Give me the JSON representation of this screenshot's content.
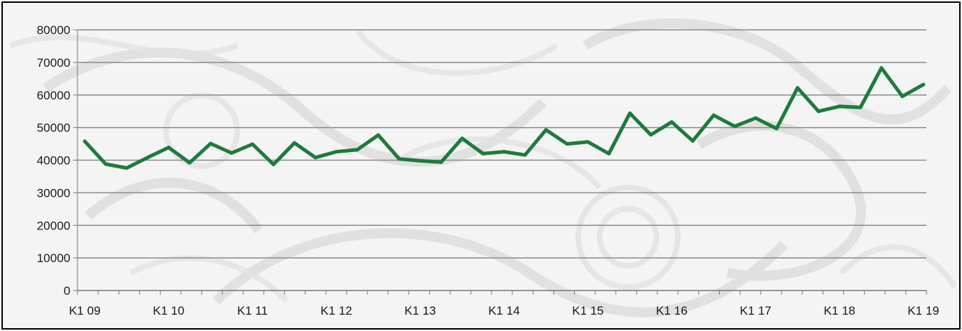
{
  "chart_data": {
    "type": "line",
    "title": "",
    "xlabel": "",
    "ylabel": "",
    "ylim": [
      0,
      80000
    ],
    "yticks": [
      0,
      10000,
      20000,
      30000,
      40000,
      50000,
      60000,
      70000,
      80000
    ],
    "ytick_labels": [
      "0",
      "10000",
      "20000",
      "30000",
      "40000",
      "50000",
      "60000",
      "70000",
      "80000"
    ],
    "xtick_labels": [
      "K1 09",
      "K1 10",
      "K1 11",
      "K1 12",
      "K1 13",
      "K1 14",
      "K1 15",
      "K1 16",
      "K1 17",
      "K1 18",
      "K1 19"
    ],
    "grid": true,
    "legend": "none",
    "line_color": "#1e7b3a",
    "series": [
      {
        "values": [
          45800,
          38800,
          37600,
          40800,
          43900,
          39200,
          45100,
          42200,
          44900,
          38700,
          45300,
          40800,
          42600,
          43200,
          47700,
          40400,
          39800,
          39400,
          46700,
          42000,
          42600,
          41600,
          49300,
          45000,
          45600,
          42000,
          54400,
          47800,
          51700,
          45900,
          53800,
          50400,
          52900,
          49700,
          62200,
          55000,
          56500,
          56200,
          68300,
          59600,
          63200
        ]
      }
    ]
  }
}
